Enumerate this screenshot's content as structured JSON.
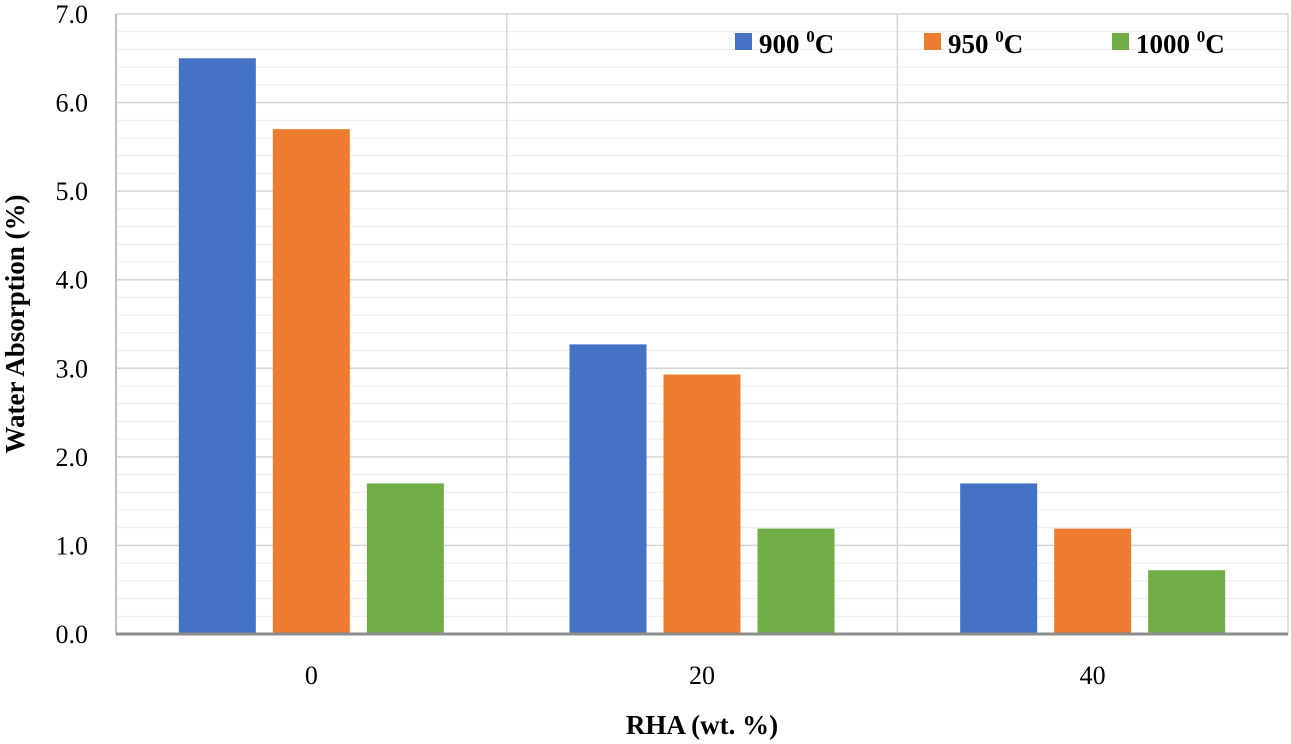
{
  "chart_data": {
    "type": "bar",
    "categories": [
      "0",
      "20",
      "40"
    ],
    "series": [
      {
        "name": "900 ⁰C",
        "name_main": "900",
        "name_sup": "0",
        "name_unit": "C",
        "color": "#4472C4",
        "values": [
          6.5,
          3.27,
          1.7
        ]
      },
      {
        "name": "950 ⁰C",
        "name_main": "950",
        "name_sup": "0",
        "name_unit": "C",
        "color": "#ED7D31",
        "values": [
          5.7,
          2.93,
          1.19
        ]
      },
      {
        "name": "1000 ⁰C",
        "name_main": "1000",
        "name_sup": "0",
        "name_unit": "C",
        "color": "#70AD47",
        "values": [
          1.7,
          1.19,
          0.72
        ]
      }
    ],
    "xlabel": "RHA (wt. %)",
    "ylabel": "Water Absorption (%)",
    "ylim": [
      0,
      7
    ],
    "yticks": [
      "0.0",
      "1.0",
      "2.0",
      "3.0",
      "4.0",
      "5.0",
      "6.0",
      "7.0"
    ],
    "grid": true,
    "minor_grid": true,
    "legend_position": "top-right"
  }
}
